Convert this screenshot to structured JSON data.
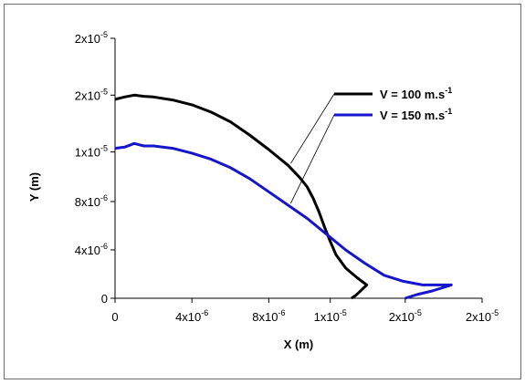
{
  "chart_data": {
    "type": "line",
    "xlabel": "X (m)",
    "ylabel": "Y (m)",
    "xlim": [
      0,
      1.91e-05
    ],
    "ylim": [
      0,
      2.15e-05
    ],
    "x_ticks": [
      {
        "value": 0,
        "mant": "0",
        "exp": ""
      },
      {
        "value": 4e-06,
        "mant": "4x10",
        "exp": "-6"
      },
      {
        "value": 8e-06,
        "mant": "8x10",
        "exp": "-6"
      },
      {
        "value": 1.12e-05,
        "mant": "1x10",
        "exp": "-5"
      },
      {
        "value": 1.51e-05,
        "mant": "2x10",
        "exp": "-5"
      },
      {
        "value": 1.91e-05,
        "mant": "2x10",
        "exp": "-5"
      }
    ],
    "y_ticks": [
      {
        "value": 0,
        "mant": "0",
        "exp": ""
      },
      {
        "value": 4e-06,
        "mant": "4x10",
        "exp": "-6"
      },
      {
        "value": 8e-06,
        "mant": "8x10",
        "exp": "-6"
      },
      {
        "value": 1.21e-05,
        "mant": "1x10",
        "exp": "-5"
      },
      {
        "value": 1.68e-05,
        "mant": "2x10",
        "exp": "-5"
      },
      {
        "value": 2.15e-05,
        "mant": "2x10",
        "exp": "-5"
      }
    ],
    "grid": false,
    "legend_position": "top-right",
    "series": [
      {
        "name": "V = 100 m.s",
        "name_exp": "-1",
        "color": "#000000",
        "points": [
          [
            0,
            1.645e-05
          ],
          [
            5e-07,
            1.665e-05
          ],
          [
            1e-06,
            1.68e-05
          ],
          [
            1.5e-06,
            1.67e-05
          ],
          [
            2e-06,
            1.665e-05
          ],
          [
            3e-06,
            1.64e-05
          ],
          [
            4e-06,
            1.6e-05
          ],
          [
            5e-06,
            1.54e-05
          ],
          [
            6e-06,
            1.46e-05
          ],
          [
            7e-06,
            1.35e-05
          ],
          [
            8e-06,
            1.23e-05
          ],
          [
            9e-06,
            1.1e-05
          ],
          [
            9.6e-06,
            1e-05
          ],
          [
            1e-05,
            9.2e-06
          ],
          [
            1.03e-05,
            8.3e-06
          ],
          [
            1.06e-05,
            7.2e-06
          ],
          [
            1.09e-05,
            5.9e-06
          ],
          [
            1.12e-05,
            4.7e-06
          ],
          [
            1.15e-05,
            3.6e-06
          ],
          [
            1.2e-05,
            2.5e-06
          ],
          [
            1.26e-05,
            1.7e-06
          ],
          [
            1.31e-05,
            1.1e-06
          ],
          [
            1.27e-05,
            5e-07
          ],
          [
            1.25e-05,
            2e-07
          ],
          [
            1.23e-05,
            0
          ]
        ]
      },
      {
        "name": "V = 150 m.s",
        "name_exp": "-1",
        "color": "#1515cc",
        "points": [
          [
            0,
            1.24e-05
          ],
          [
            5e-07,
            1.25e-05
          ],
          [
            1e-06,
            1.28e-05
          ],
          [
            1.5e-06,
            1.26e-05
          ],
          [
            2e-06,
            1.26e-05
          ],
          [
            3e-06,
            1.24e-05
          ],
          [
            4e-06,
            1.2e-05
          ],
          [
            5e-06,
            1.15e-05
          ],
          [
            6e-06,
            1.08e-05
          ],
          [
            7e-06,
            9.9e-06
          ],
          [
            8e-06,
            8.8e-06
          ],
          [
            9e-06,
            7.7e-06
          ],
          [
            1e-05,
            6.6e-06
          ],
          [
            1.1e-05,
            5.3e-06
          ],
          [
            1.2e-05,
            4e-06
          ],
          [
            1.3e-05,
            2.9e-06
          ],
          [
            1.4e-05,
            1.9e-06
          ],
          [
            1.5e-05,
            1.4e-06
          ],
          [
            1.6e-05,
            1.1e-06
          ],
          [
            1.75e-05,
            1.1e-06
          ],
          [
            1.65e-05,
            6e-07
          ],
          [
            1.57e-05,
            3e-07
          ],
          [
            1.51e-05,
            0
          ]
        ]
      }
    ]
  }
}
